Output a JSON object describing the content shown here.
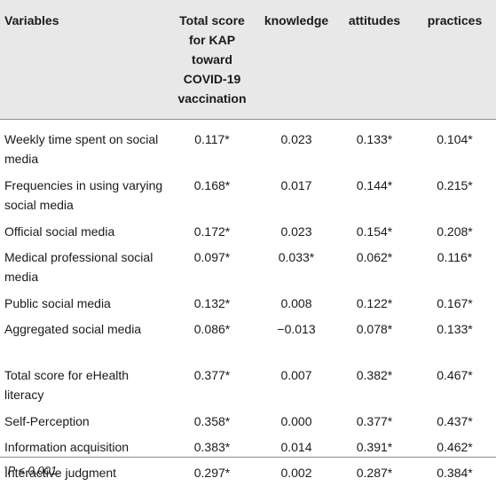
{
  "table": {
    "headers": [
      "Variables",
      "Total score for KAP toward COVID-19 vaccination",
      "knowledge",
      "attitudes",
      "practices"
    ],
    "rows": [
      [
        "Weekly time spent on social media",
        "0.117*",
        "0.023",
        "0.133*",
        "0.104*"
      ],
      [
        "Frequencies in using varying social media",
        "0.168*",
        "0.017",
        "0.144*",
        "0.215*"
      ],
      [
        "Official social media",
        "0.172*",
        "0.023",
        "0.154*",
        "0.208*"
      ],
      [
        "Medical professional social media",
        "0.097*",
        "0.033*",
        "0.062*",
        "0.116*"
      ],
      [
        "Public social media",
        "0.132*",
        "0.008",
        "0.122*",
        "0.167*"
      ],
      [
        "Aggregated social media",
        "0.086*",
        "−0.013",
        "0.078*",
        "0.133*"
      ],
      [
        "Total score for eHealth literacy",
        "0.377*",
        "0.007",
        "0.382*",
        "0.467*"
      ],
      [
        "Self-Perception",
        "0.358*",
        "0.000",
        "0.377*",
        "0.437*"
      ],
      [
        "Information acquisition",
        "0.383*",
        "0.014",
        "0.391*",
        "0.462*"
      ],
      [
        "Interactive judgment",
        "0.297*",
        "0.002",
        "0.287*",
        "0.384*"
      ]
    ]
  },
  "footnote": {
    "marker": "*",
    "text": "P < 0.001."
  }
}
